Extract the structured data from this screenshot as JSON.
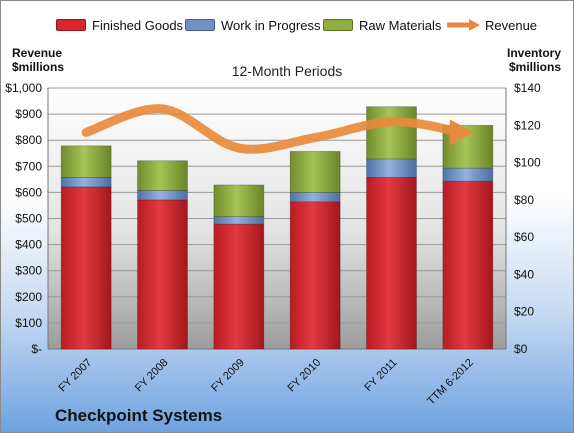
{
  "company": "Checkpoint Systems",
  "colors": {
    "finished_goods": "#d9262e",
    "work_in_progress": "#6f91c6",
    "raw_materials": "#8fae3e",
    "revenue": "#e88a3c"
  },
  "legend": [
    {
      "label": "Finished Goods",
      "color": "#d9262e",
      "kind": "box"
    },
    {
      "label": "Work in Progress",
      "color": "#6f91c6",
      "kind": "box"
    },
    {
      "label": "Raw Materials",
      "color": "#8fae3e",
      "kind": "box"
    },
    {
      "label": "Revenue",
      "color": "#e88a3c",
      "kind": "arrow"
    }
  ],
  "chart_data": {
    "type": "bar",
    "stacked": true,
    "title": "12-Month Periods",
    "y_left_label": "Revenue $millions",
    "y_right_label": "Inventory $millions",
    "categories": [
      "FY 2007",
      "FY 2008",
      "FY 2009",
      "FY 2010",
      "FY 2011",
      "TTM 6-2012"
    ],
    "y_left_ticks": [
      "$-",
      "$100",
      "$200",
      "$300",
      "$400",
      "$500",
      "$600",
      "$700",
      "$800",
      "$900",
      "$1,000"
    ],
    "y_right_ticks": [
      "$0",
      "$20",
      "$40",
      "$60",
      "$80",
      "$100",
      "$120",
      "$140"
    ],
    "y_left_lim": [
      0,
      1000
    ],
    "y_right_lim": [
      0,
      140
    ],
    "series": [
      {
        "name": "Finished Goods",
        "axis": "right",
        "values": [
          87,
          80,
          67,
          79,
          92,
          90
        ]
      },
      {
        "name": "Work in Progress",
        "axis": "right",
        "values": [
          5,
          5,
          4,
          5,
          10,
          7
        ]
      },
      {
        "name": "Raw Materials",
        "axis": "right",
        "values": [
          17,
          16,
          17,
          22,
          28,
          23
        ]
      },
      {
        "name": "Revenue",
        "axis": "left",
        "type": "line",
        "values": [
          830,
          920,
          770,
          810,
          870,
          830
        ]
      }
    ],
    "grid": true,
    "legend_position": "top"
  }
}
